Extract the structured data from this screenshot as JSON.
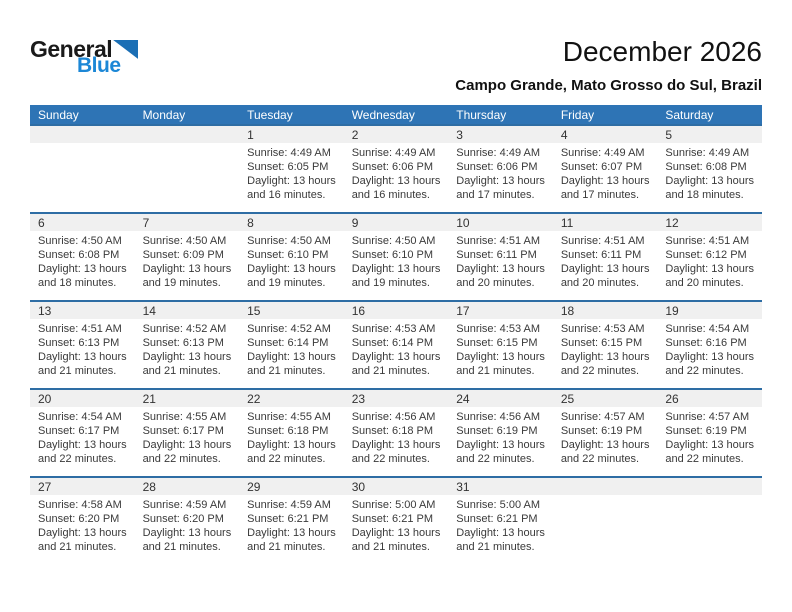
{
  "logo": {
    "text_primary": "General",
    "text_secondary": "Blue",
    "triangle_icon": "blue-triangle",
    "colors": {
      "triangle": "#1B6FB5",
      "secondary_text": "#1C87D6"
    }
  },
  "header": {
    "title": "December 2026",
    "subtitle": "Campo Grande, Mato Grosso do Sul, Brazil"
  },
  "calendar": {
    "weekdays": [
      "Sunday",
      "Monday",
      "Tuesday",
      "Wednesday",
      "Thursday",
      "Friday",
      "Saturday"
    ],
    "colors": {
      "header_bg": "#2E74B5",
      "header_text": "#ffffff",
      "row_divider": "#2E6DA4",
      "day_band_bg": "#F0F0F0",
      "cell_text": "#3a3a3a"
    },
    "weeks": [
      [
        null,
        null,
        {
          "n": "1",
          "lines": [
            "Sunrise: 4:49 AM",
            "Sunset: 6:05 PM",
            "Daylight: 13 hours",
            "and 16 minutes."
          ]
        },
        {
          "n": "2",
          "lines": [
            "Sunrise: 4:49 AM",
            "Sunset: 6:06 PM",
            "Daylight: 13 hours",
            "and 16 minutes."
          ]
        },
        {
          "n": "3",
          "lines": [
            "Sunrise: 4:49 AM",
            "Sunset: 6:06 PM",
            "Daylight: 13 hours",
            "and 17 minutes."
          ]
        },
        {
          "n": "4",
          "lines": [
            "Sunrise: 4:49 AM",
            "Sunset: 6:07 PM",
            "Daylight: 13 hours",
            "and 17 minutes."
          ]
        },
        {
          "n": "5",
          "lines": [
            "Sunrise: 4:49 AM",
            "Sunset: 6:08 PM",
            "Daylight: 13 hours",
            "and 18 minutes."
          ]
        }
      ],
      [
        {
          "n": "6",
          "lines": [
            "Sunrise: 4:50 AM",
            "Sunset: 6:08 PM",
            "Daylight: 13 hours",
            "and 18 minutes."
          ]
        },
        {
          "n": "7",
          "lines": [
            "Sunrise: 4:50 AM",
            "Sunset: 6:09 PM",
            "Daylight: 13 hours",
            "and 19 minutes."
          ]
        },
        {
          "n": "8",
          "lines": [
            "Sunrise: 4:50 AM",
            "Sunset: 6:10 PM",
            "Daylight: 13 hours",
            "and 19 minutes."
          ]
        },
        {
          "n": "9",
          "lines": [
            "Sunrise: 4:50 AM",
            "Sunset: 6:10 PM",
            "Daylight: 13 hours",
            "and 19 minutes."
          ]
        },
        {
          "n": "10",
          "lines": [
            "Sunrise: 4:51 AM",
            "Sunset: 6:11 PM",
            "Daylight: 13 hours",
            "and 20 minutes."
          ]
        },
        {
          "n": "11",
          "lines": [
            "Sunrise: 4:51 AM",
            "Sunset: 6:11 PM",
            "Daylight: 13 hours",
            "and 20 minutes."
          ]
        },
        {
          "n": "12",
          "lines": [
            "Sunrise: 4:51 AM",
            "Sunset: 6:12 PM",
            "Daylight: 13 hours",
            "and 20 minutes."
          ]
        }
      ],
      [
        {
          "n": "13",
          "lines": [
            "Sunrise: 4:51 AM",
            "Sunset: 6:13 PM",
            "Daylight: 13 hours",
            "and 21 minutes."
          ]
        },
        {
          "n": "14",
          "lines": [
            "Sunrise: 4:52 AM",
            "Sunset: 6:13 PM",
            "Daylight: 13 hours",
            "and 21 minutes."
          ]
        },
        {
          "n": "15",
          "lines": [
            "Sunrise: 4:52 AM",
            "Sunset: 6:14 PM",
            "Daylight: 13 hours",
            "and 21 minutes."
          ]
        },
        {
          "n": "16",
          "lines": [
            "Sunrise: 4:53 AM",
            "Sunset: 6:14 PM",
            "Daylight: 13 hours",
            "and 21 minutes."
          ]
        },
        {
          "n": "17",
          "lines": [
            "Sunrise: 4:53 AM",
            "Sunset: 6:15 PM",
            "Daylight: 13 hours",
            "and 21 minutes."
          ]
        },
        {
          "n": "18",
          "lines": [
            "Sunrise: 4:53 AM",
            "Sunset: 6:15 PM",
            "Daylight: 13 hours",
            "and 22 minutes."
          ]
        },
        {
          "n": "19",
          "lines": [
            "Sunrise: 4:54 AM",
            "Sunset: 6:16 PM",
            "Daylight: 13 hours",
            "and 22 minutes."
          ]
        }
      ],
      [
        {
          "n": "20",
          "lines": [
            "Sunrise: 4:54 AM",
            "Sunset: 6:17 PM",
            "Daylight: 13 hours",
            "and 22 minutes."
          ]
        },
        {
          "n": "21",
          "lines": [
            "Sunrise: 4:55 AM",
            "Sunset: 6:17 PM",
            "Daylight: 13 hours",
            "and 22 minutes."
          ]
        },
        {
          "n": "22",
          "lines": [
            "Sunrise: 4:55 AM",
            "Sunset: 6:18 PM",
            "Daylight: 13 hours",
            "and 22 minutes."
          ]
        },
        {
          "n": "23",
          "lines": [
            "Sunrise: 4:56 AM",
            "Sunset: 6:18 PM",
            "Daylight: 13 hours",
            "and 22 minutes."
          ]
        },
        {
          "n": "24",
          "lines": [
            "Sunrise: 4:56 AM",
            "Sunset: 6:19 PM",
            "Daylight: 13 hours",
            "and 22 minutes."
          ]
        },
        {
          "n": "25",
          "lines": [
            "Sunrise: 4:57 AM",
            "Sunset: 6:19 PM",
            "Daylight: 13 hours",
            "and 22 minutes."
          ]
        },
        {
          "n": "26",
          "lines": [
            "Sunrise: 4:57 AM",
            "Sunset: 6:19 PM",
            "Daylight: 13 hours",
            "and 22 minutes."
          ]
        }
      ],
      [
        {
          "n": "27",
          "lines": [
            "Sunrise: 4:58 AM",
            "Sunset: 6:20 PM",
            "Daylight: 13 hours",
            "and 21 minutes."
          ]
        },
        {
          "n": "28",
          "lines": [
            "Sunrise: 4:59 AM",
            "Sunset: 6:20 PM",
            "Daylight: 13 hours",
            "and 21 minutes."
          ]
        },
        {
          "n": "29",
          "lines": [
            "Sunrise: 4:59 AM",
            "Sunset: 6:21 PM",
            "Daylight: 13 hours",
            "and 21 minutes."
          ]
        },
        {
          "n": "30",
          "lines": [
            "Sunrise: 5:00 AM",
            "Sunset: 6:21 PM",
            "Daylight: 13 hours",
            "and 21 minutes."
          ]
        },
        {
          "n": "31",
          "lines": [
            "Sunrise: 5:00 AM",
            "Sunset: 6:21 PM",
            "Daylight: 13 hours",
            "and 21 minutes."
          ]
        },
        null,
        null
      ]
    ]
  }
}
